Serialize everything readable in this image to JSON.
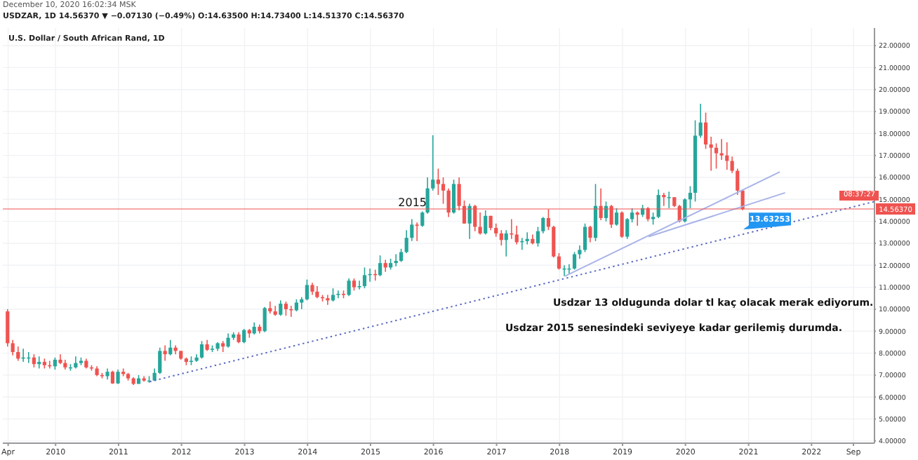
{
  "chart_data": {
    "type": "candlestick",
    "title": "U.S. Dollar / South African Rand, 1D",
    "subtitle": "USDZAR, 1D 14.56370 ▼ −0.07130 (−0.49%) O:14.63500 H:14.73400 L:14.51370 C:14.56370",
    "annotations": [
      "December 10, 2020 16:02:34 MSK",
      {
        "text": "2015",
        "x": "2015-09",
        "y": 14.7
      },
      {
        "text": "13.63253",
        "x": "2020-12",
        "y": 13.63253
      },
      "Usdzar 13 oldugunda dolar tl kaç olacak merak ediyorum.",
      "Usdzar 2015 senesindeki seviyeye kadar gerilemiş durumda.",
      "08:37:27"
    ],
    "xlim": [
      "2009-03",
      "2023-01"
    ],
    "xticks": [
      {
        "value": "2009-04",
        "label": "Apr"
      },
      "2010",
      "2011",
      "2012",
      "2013",
      "2014",
      "2015",
      "2016",
      "2017",
      "2018",
      "2019",
      "2020",
      "2021",
      "2022",
      {
        "value": "2022-09",
        "label": "Sep"
      }
    ],
    "ylim": [
      3.9,
      22.8
    ],
    "yticks": [
      {
        "value": 4,
        "label": "4.00000"
      },
      {
        "value": 5,
        "label": "5.00000"
      },
      {
        "value": 6,
        "label": "6.00000"
      },
      {
        "value": 7,
        "label": "7.00000"
      },
      {
        "value": 8,
        "label": "8.00000"
      },
      {
        "value": 9,
        "label": "9.00000"
      },
      {
        "value": 10,
        "label": "10.00000"
      },
      {
        "value": 11,
        "label": "11.00000"
      },
      {
        "value": 12,
        "label": "12.00000"
      },
      {
        "value": 13,
        "label": "13.00000"
      },
      {
        "value": 14,
        "label": "14.00000"
      },
      {
        "value": 15,
        "label": "15.00000"
      },
      {
        "value": 16,
        "label": "16.00000"
      },
      {
        "value": 17,
        "label": "17.00000"
      },
      {
        "value": 18,
        "label": "18.00000"
      },
      {
        "value": 19,
        "label": "19.00000"
      },
      {
        "value": 20,
        "label": "20.00000"
      },
      {
        "value": 21,
        "label": "21.00000"
      },
      {
        "value": 22,
        "label": "22.00000"
      }
    ],
    "grid": true,
    "ref_lines": [
      {
        "axis": "y",
        "value": 14.5637,
        "label": "14.56370",
        "color": "#ef5350"
      }
    ],
    "series": [
      {
        "x": [
          "2009-04",
          "2009-05",
          "2009-06",
          "2009-07",
          "2009-08",
          "2009-09",
          "2009-10",
          "2009-11",
          "2009-12",
          "2010-01",
          "2010-02",
          "2010-03",
          "2010-04",
          "2010-05",
          "2010-06",
          "2010-07",
          "2010-08",
          "2010-09",
          "2010-10",
          "2010-11",
          "2010-12",
          "2011-01",
          "2011-02",
          "2011-03",
          "2011-04",
          "2011-05",
          "2011-06",
          "2011-07",
          "2011-08",
          "2011-09",
          "2011-10",
          "2011-11",
          "2011-12",
          "2012-01",
          "2012-02",
          "2012-03",
          "2012-04",
          "2012-05",
          "2012-06",
          "2012-07",
          "2012-08",
          "2012-09",
          "2012-10",
          "2012-11",
          "2012-12",
          "2013-01",
          "2013-02",
          "2013-03",
          "2013-04",
          "2013-05",
          "2013-06",
          "2013-07",
          "2013-08",
          "2013-09",
          "2013-10",
          "2013-11",
          "2013-12",
          "2014-01",
          "2014-02",
          "2014-03",
          "2014-04",
          "2014-05",
          "2014-06",
          "2014-07",
          "2014-08",
          "2014-09",
          "2014-10",
          "2014-11",
          "2014-12",
          "2015-01",
          "2015-02",
          "2015-03",
          "2015-04",
          "2015-05",
          "2015-06",
          "2015-07",
          "2015-08",
          "2015-09",
          "2015-10",
          "2015-11",
          "2015-12",
          "2016-01",
          "2016-02",
          "2016-03",
          "2016-04",
          "2016-05",
          "2016-06",
          "2016-07",
          "2016-08",
          "2016-09",
          "2016-10",
          "2016-11",
          "2016-12",
          "2017-01",
          "2017-02",
          "2017-03",
          "2017-04",
          "2017-05",
          "2017-06",
          "2017-07",
          "2017-08",
          "2017-09",
          "2017-10",
          "2017-11",
          "2017-12",
          "2018-01",
          "2018-02",
          "2018-03",
          "2018-04",
          "2018-05",
          "2018-06",
          "2018-07",
          "2018-08",
          "2018-09",
          "2018-10",
          "2018-11",
          "2018-12",
          "2019-01",
          "2019-02",
          "2019-03",
          "2019-04",
          "2019-05",
          "2019-06",
          "2019-07",
          "2019-08",
          "2019-09",
          "2019-10",
          "2019-11",
          "2019-12",
          "2020-01",
          "2020-02",
          "2020-03",
          "2020-04",
          "2020-05",
          "2020-06",
          "2020-07",
          "2020-08",
          "2020-09",
          "2020-10",
          "2020-11",
          "2020-12"
        ],
        "ohlc": [
          [
            9.9,
            10.0,
            8.3,
            8.45
          ],
          [
            8.45,
            8.6,
            7.9,
            8.05
          ],
          [
            8.05,
            8.3,
            7.65,
            7.75
          ],
          [
            7.75,
            8.2,
            7.6,
            7.8
          ],
          [
            7.8,
            8.05,
            7.55,
            7.8
          ],
          [
            7.8,
            7.95,
            7.35,
            7.5
          ],
          [
            7.5,
            7.85,
            7.3,
            7.6
          ],
          [
            7.6,
            7.75,
            7.3,
            7.45
          ],
          [
            7.45,
            7.65,
            7.3,
            7.4
          ],
          [
            7.4,
            7.8,
            7.25,
            7.7
          ],
          [
            7.7,
            7.95,
            7.5,
            7.55
          ],
          [
            7.55,
            7.7,
            7.25,
            7.35
          ],
          [
            7.35,
            7.5,
            7.2,
            7.35
          ],
          [
            7.35,
            7.85,
            7.3,
            7.55
          ],
          [
            7.55,
            7.8,
            7.45,
            7.65
          ],
          [
            7.65,
            7.75,
            7.3,
            7.35
          ],
          [
            7.35,
            7.45,
            7.2,
            7.3
          ],
          [
            7.3,
            7.4,
            6.95,
            7.0
          ],
          [
            7.0,
            7.1,
            6.85,
            6.95
          ],
          [
            6.95,
            7.3,
            6.8,
            7.15
          ],
          [
            7.15,
            7.2,
            6.6,
            6.62
          ],
          [
            6.62,
            7.25,
            6.6,
            7.15
          ],
          [
            7.15,
            7.3,
            6.95,
            7.05
          ],
          [
            7.05,
            7.1,
            6.75,
            6.85
          ],
          [
            6.85,
            6.9,
            6.55,
            6.6
          ],
          [
            6.6,
            7.0,
            6.6,
            6.85
          ],
          [
            6.85,
            6.95,
            6.7,
            6.75
          ],
          [
            6.75,
            6.95,
            6.65,
            6.75
          ],
          [
            6.75,
            7.3,
            6.75,
            7.1
          ],
          [
            7.1,
            8.25,
            7.05,
            8.1
          ],
          [
            8.1,
            8.35,
            7.65,
            7.95
          ],
          [
            7.95,
            8.6,
            7.9,
            8.25
          ],
          [
            8.25,
            8.35,
            7.95,
            8.1
          ],
          [
            8.1,
            8.1,
            7.7,
            7.75
          ],
          [
            7.75,
            7.8,
            7.45,
            7.6
          ],
          [
            7.6,
            7.85,
            7.45,
            7.65
          ],
          [
            7.65,
            7.95,
            7.6,
            7.8
          ],
          [
            7.8,
            8.55,
            7.75,
            8.4
          ],
          [
            8.4,
            8.6,
            8.1,
            8.15
          ],
          [
            8.15,
            8.35,
            8.05,
            8.2
          ],
          [
            8.2,
            8.5,
            8.1,
            8.45
          ],
          [
            8.45,
            8.55,
            8.05,
            8.3
          ],
          [
            8.3,
            8.9,
            8.25,
            8.7
          ],
          [
            8.7,
            8.95,
            8.6,
            8.85
          ],
          [
            8.85,
            8.95,
            8.45,
            8.5
          ],
          [
            8.5,
            9.1,
            8.45,
            9.05
          ],
          [
            9.05,
            9.1,
            8.7,
            8.9
          ],
          [
            8.9,
            9.4,
            8.85,
            9.2
          ],
          [
            9.2,
            9.3,
            8.9,
            9.0
          ],
          [
            9.0,
            10.1,
            8.95,
            10.05
          ],
          [
            10.05,
            10.35,
            9.8,
            9.9
          ],
          [
            9.9,
            10.15,
            9.7,
            9.75
          ],
          [
            9.75,
            10.4,
            9.7,
            10.25
          ],
          [
            10.25,
            10.35,
            9.7,
            10.0
          ],
          [
            10.0,
            10.15,
            9.65,
            9.95
          ],
          [
            9.95,
            10.45,
            9.9,
            10.3
          ],
          [
            10.3,
            10.55,
            10.0,
            10.45
          ],
          [
            10.45,
            11.35,
            10.4,
            11.1
          ],
          [
            11.1,
            11.2,
            10.65,
            10.8
          ],
          [
            10.8,
            11.05,
            10.5,
            10.55
          ],
          [
            10.55,
            10.65,
            10.35,
            10.5
          ],
          [
            10.5,
            10.65,
            10.2,
            10.4
          ],
          [
            10.4,
            10.95,
            10.35,
            10.65
          ],
          [
            10.65,
            10.85,
            10.5,
            10.7
          ],
          [
            10.7,
            10.85,
            10.5,
            10.65
          ],
          [
            10.65,
            11.4,
            10.6,
            11.3
          ],
          [
            11.3,
            11.4,
            10.85,
            11.0
          ],
          [
            11.0,
            11.3,
            10.9,
            11.05
          ],
          [
            11.05,
            11.9,
            10.95,
            11.55
          ],
          [
            11.55,
            11.85,
            11.25,
            11.6
          ],
          [
            11.6,
            11.8,
            11.3,
            11.55
          ],
          [
            11.55,
            12.45,
            11.5,
            12.1
          ],
          [
            12.1,
            12.25,
            11.7,
            11.9
          ],
          [
            11.9,
            12.3,
            11.8,
            12.1
          ],
          [
            12.1,
            12.5,
            11.95,
            12.2
          ],
          [
            12.2,
            12.75,
            12.15,
            12.6
          ],
          [
            12.6,
            13.6,
            12.55,
            13.25
          ],
          [
            13.25,
            14.1,
            13.1,
            13.85
          ],
          [
            13.85,
            13.95,
            13.1,
            13.8
          ],
          [
            13.8,
            14.45,
            13.75,
            14.4
          ],
          [
            14.4,
            16.0,
            14.35,
            15.5
          ],
          [
            15.5,
            17.92,
            15.4,
            15.9
          ],
          [
            15.9,
            16.4,
            15.2,
            15.7
          ],
          [
            15.7,
            16.0,
            14.8,
            15.4
          ],
          [
            15.4,
            15.5,
            14.2,
            14.4
          ],
          [
            14.4,
            15.9,
            14.35,
            15.7
          ],
          [
            15.7,
            16.0,
            14.5,
            14.7
          ],
          [
            14.7,
            14.95,
            13.9,
            13.9
          ],
          [
            13.9,
            14.8,
            13.2,
            14.7
          ],
          [
            14.7,
            14.75,
            13.55,
            13.75
          ],
          [
            13.75,
            14.4,
            13.4,
            13.45
          ],
          [
            13.45,
            14.5,
            13.4,
            14.25
          ],
          [
            14.25,
            14.25,
            13.6,
            13.7
          ],
          [
            13.7,
            13.9,
            13.3,
            13.45
          ],
          [
            13.45,
            13.6,
            12.9,
            13.15
          ],
          [
            13.15,
            13.6,
            12.4,
            13.45
          ],
          [
            13.45,
            14.1,
            13.2,
            13.4
          ],
          [
            13.4,
            13.8,
            12.95,
            13.05
          ],
          [
            13.05,
            13.25,
            12.7,
            13.1
          ],
          [
            13.1,
            13.5,
            12.95,
            13.2
          ],
          [
            13.2,
            13.4,
            12.95,
            13.0
          ],
          [
            13.0,
            13.75,
            12.85,
            13.55
          ],
          [
            13.55,
            14.2,
            13.45,
            14.15
          ],
          [
            14.15,
            14.55,
            13.6,
            13.75
          ],
          [
            13.75,
            13.8,
            12.35,
            12.4
          ],
          [
            12.4,
            12.55,
            11.8,
            11.85
          ],
          [
            11.85,
            12.0,
            11.51,
            11.85
          ],
          [
            11.85,
            12.05,
            11.6,
            11.85
          ],
          [
            11.85,
            12.6,
            11.8,
            12.5
          ],
          [
            12.5,
            12.9,
            12.3,
            12.7
          ],
          [
            12.7,
            13.9,
            12.6,
            13.75
          ],
          [
            13.75,
            13.8,
            13.05,
            13.25
          ],
          [
            13.25,
            15.7,
            13.1,
            14.7
          ],
          [
            14.7,
            15.5,
            14.05,
            14.15
          ],
          [
            14.15,
            14.9,
            14.0,
            14.7
          ],
          [
            14.7,
            14.75,
            13.7,
            13.85
          ],
          [
            13.85,
            14.6,
            13.8,
            14.4
          ],
          [
            14.4,
            14.45,
            13.25,
            13.3
          ],
          [
            13.3,
            14.15,
            13.2,
            14.1
          ],
          [
            14.1,
            14.6,
            13.95,
            14.4
          ],
          [
            14.4,
            14.45,
            13.8,
            14.3
          ],
          [
            14.3,
            14.75,
            14.2,
            14.6
          ],
          [
            14.6,
            14.65,
            14.0,
            14.1
          ],
          [
            14.1,
            14.4,
            13.85,
            14.2
          ],
          [
            14.2,
            15.45,
            14.15,
            15.2
          ],
          [
            15.2,
            15.3,
            14.7,
            15.1
          ],
          [
            15.1,
            15.35,
            14.6,
            15.1
          ],
          [
            15.1,
            15.1,
            14.65,
            14.7
          ],
          [
            14.7,
            14.75,
            13.95,
            14.0
          ],
          [
            14.0,
            15.05,
            13.95,
            15.0
          ],
          [
            15.0,
            15.6,
            14.6,
            15.3
          ],
          [
            15.3,
            18.6,
            14.9,
            17.9
          ],
          [
            17.9,
            19.35,
            17.8,
            18.5
          ],
          [
            18.5,
            18.95,
            17.3,
            17.5
          ],
          [
            17.5,
            17.85,
            16.3,
            17.35
          ],
          [
            17.35,
            17.55,
            16.4,
            17.1
          ],
          [
            17.1,
            17.75,
            16.8,
            17.0
          ],
          [
            17.0,
            17.6,
            16.35,
            16.75
          ],
          [
            16.75,
            16.95,
            16.2,
            16.3
          ],
          [
            16.3,
            16.4,
            15.2,
            15.4
          ],
          [
            15.4,
            15.45,
            14.51,
            14.56
          ]
        ],
        "colors": [
          "#ef5350",
          "#ef5350",
          "#ef5350",
          "#26a69a",
          "#26a69a",
          "#ef5350",
          "#26a69a",
          "#ef5350",
          "#ef5350",
          "#26a69a",
          "#ef5350",
          "#ef5350",
          "#26a69a",
          "#26a69a",
          "#26a69a",
          "#ef5350",
          "#ef5350",
          "#ef5350",
          "#ef5350",
          "#26a69a",
          "#ef5350",
          "#26a69a",
          "#ef5350",
          "#ef5350",
          "#ef5350",
          "#26a69a",
          "#ef5350",
          "#26a69a",
          "#26a69a",
          "#26a69a",
          "#ef5350",
          "#26a69a",
          "#ef5350",
          "#ef5350",
          "#ef5350",
          "#26a69a",
          "#26a69a",
          "#26a69a",
          "#ef5350",
          "#26a69a",
          "#26a69a",
          "#ef5350",
          "#26a69a",
          "#26a69a",
          "#ef5350",
          "#26a69a",
          "#ef5350",
          "#26a69a",
          "#ef5350",
          "#26a69a",
          "#ef5350",
          "#ef5350",
          "#26a69a",
          "#ef5350",
          "#ef5350",
          "#26a69a",
          "#26a69a",
          "#26a69a",
          "#ef5350",
          "#ef5350",
          "#ef5350",
          "#ef5350",
          "#26a69a",
          "#26a69a",
          "#ef5350",
          "#26a69a",
          "#ef5350",
          "#26a69a",
          "#26a69a",
          "#26a69a",
          "#ef5350",
          "#26a69a",
          "#ef5350",
          "#26a69a",
          "#26a69a",
          "#26a69a",
          "#26a69a",
          "#26a69a",
          "#ef5350",
          "#26a69a",
          "#26a69a",
          "#26a69a",
          "#ef5350",
          "#ef5350",
          "#ef5350",
          "#26a69a",
          "#ef5350",
          "#ef5350",
          "#26a69a",
          "#ef5350",
          "#ef5350",
          "#26a69a",
          "#ef5350",
          "#ef5350",
          "#ef5350",
          "#26a69a",
          "#ef5350",
          "#ef5350",
          "#26a69a",
          "#26a69a",
          "#ef5350",
          "#26a69a",
          "#26a69a",
          "#ef5350",
          "#ef5350",
          "#ef5350",
          "#26a69a",
          "#26a69a",
          "#26a69a",
          "#26a69a",
          "#26a69a",
          "#ef5350",
          "#26a69a",
          "#ef5350",
          "#26a69a",
          "#ef5350",
          "#26a69a",
          "#ef5350",
          "#26a69a",
          "#26a69a",
          "#ef5350",
          "#26a69a",
          "#ef5350",
          "#26a69a",
          "#26a69a",
          "#ef5350",
          "#26a69a",
          "#ef5350",
          "#ef5350",
          "#26a69a",
          "#26a69a",
          "#26a69a",
          "#26a69a",
          "#ef5350",
          "#ef5350",
          "#ef5350",
          "#ef5350",
          "#ef5350",
          "#ef5350",
          "#ef5350",
          "#ef5350"
        ]
      },
      {
        "type": "line",
        "x": [
          "2011-07",
          "2023-01"
        ],
        "values": [
          6.7,
          14.9
        ],
        "color": "#5c6bc0",
        "line_style": "dotted"
      },
      {
        "type": "line",
        "x": [
          "2018-02",
          "2021-07"
        ],
        "values": [
          11.5,
          16.25
        ],
        "color": "#a9b4e8",
        "line_style": "solid"
      },
      {
        "type": "line",
        "x": [
          "2019-06",
          "2021-08"
        ],
        "values": [
          13.3,
          15.3
        ],
        "color": "#a9b4e8",
        "line_style": "solid"
      }
    ]
  }
}
